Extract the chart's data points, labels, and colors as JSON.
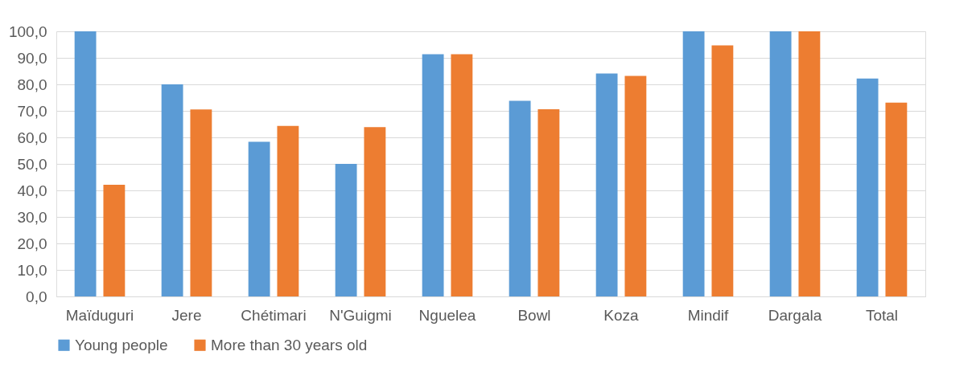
{
  "chart_data": {
    "type": "bar",
    "categories": [
      "Maïduguri",
      "Jere",
      "Chétimari",
      "N'Guigmi",
      "Nguelea",
      "Bowl",
      "Koza",
      "Mindif",
      "Dargala",
      "Total"
    ],
    "series": [
      {
        "name": "Young people",
        "color": "#5b9bd5",
        "values": [
          100,
          80,
          58.3,
          50,
          91.4,
          73.8,
          84.1,
          100,
          100,
          82.2
        ]
      },
      {
        "name": "More than 30 years old",
        "color": "#ed7d31",
        "values": [
          42.1,
          70.5,
          64.3,
          63.9,
          91.4,
          70.6,
          83.2,
          94.7,
          100,
          73.1
        ]
      }
    ],
    "ylim": [
      0,
      100
    ],
    "yticks": [
      {
        "value": 0,
        "label": "0,0"
      },
      {
        "value": 10,
        "label": "10,0"
      },
      {
        "value": 20,
        "label": "20,0"
      },
      {
        "value": 30,
        "label": "30,0"
      },
      {
        "value": 40,
        "label": "40,0"
      },
      {
        "value": 50,
        "label": "50,0"
      },
      {
        "value": 60,
        "label": "60,0"
      },
      {
        "value": 70,
        "label": "70,0"
      },
      {
        "value": 80,
        "label": "80,0"
      },
      {
        "value": 90,
        "label": "90,0"
      },
      {
        "value": 100,
        "label": "100,0"
      }
    ],
    "grid": "y",
    "legend": "bottom"
  }
}
